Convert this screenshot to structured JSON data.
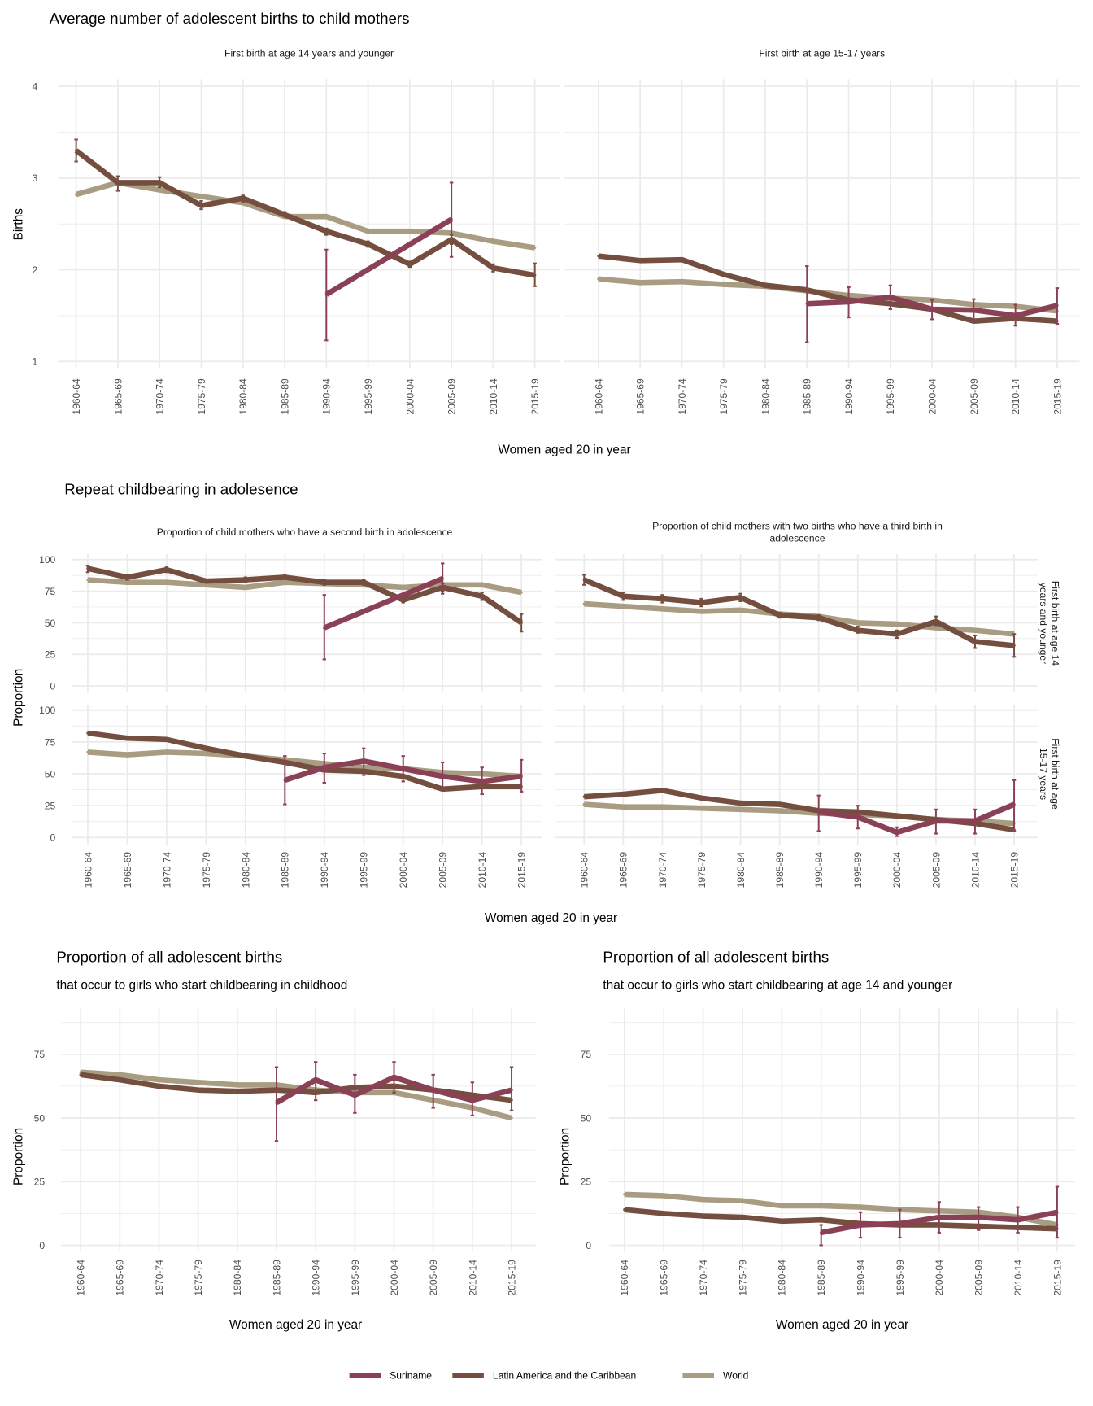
{
  "colors": {
    "Suriname": "#8B4155",
    "Latin America and the Caribbean": "#744E3F",
    "World": "#A89D82",
    "grid": "#EBEBEB"
  },
  "sections": {
    "a_title": "Average number of adolescent births to child mothers",
    "a_xlabel": "Women aged 20 in year",
    "a_ylabel": "Births",
    "b_title": "Repeat childbearing in adolesence",
    "b_xlabel": "Women aged 20 in year",
    "b_ylabel": "Proportion",
    "b_col1": "Proportion of child mothers who have a second birth in adolescence",
    "b_col2_line1": "Proportion of child mothers with two births who have a third birth in",
    "b_col2_line2": "adolescence",
    "b_row1_line1": "First birth at age 14",
    "b_row1_line2": "years and younger",
    "b_row2_line1": "First birth at age",
    "b_row2_line2": "15-17 years",
    "c1_title": "Proportion of all adolescent births",
    "c1_subtitle": "that occur to girls who start childbearing in childhood",
    "c2_title": "Proportion of all adolescent births",
    "c2_subtitle": "that occur to girls who start childbearing at age 14 and younger",
    "c_xlabel": "Women aged 20 in year",
    "c_ylabel": "Proportion"
  },
  "legend": {
    "position": "bottom",
    "items": [
      "Suriname",
      "Latin America and the Caribbean",
      "World"
    ]
  },
  "chart_data": [
    {
      "type": "line",
      "title": "First birth at age 14 years and younger",
      "ylim": [
        1,
        4
      ],
      "yticks": [
        1,
        2,
        3,
        4
      ],
      "grid": true,
      "categories": [
        "1960-64",
        "1965-69",
        "1970-74",
        "1975-79",
        "1980-84",
        "1985-89",
        "1990-94",
        "1995-99",
        "2000-04",
        "2005-09",
        "2010-14",
        "2015-19"
      ],
      "series": [
        {
          "name": "Latin America and the Caribbean",
          "values": [
            3.3,
            2.95,
            2.95,
            2.7,
            2.78,
            2.6,
            2.42,
            2.28,
            2.06,
            2.33,
            2.02,
            1.94
          ],
          "err": [
            [
              3.18,
              3.42
            ],
            [
              2.86,
              3.02
            ],
            [
              2.9,
              3.01
            ],
            [
              2.66,
              2.75
            ],
            [
              2.74,
              2.81
            ],
            [
              2.58,
              2.63
            ],
            [
              2.38,
              2.45
            ],
            [
              2.25,
              2.31
            ],
            [
              2.03,
              2.09
            ],
            [
              2.28,
              2.38
            ],
            [
              1.98,
              2.06
            ],
            [
              1.82,
              2.07
            ]
          ]
        },
        {
          "name": "World",
          "values": [
            2.82,
            2.95,
            2.87,
            2.8,
            2.73,
            2.58,
            2.58,
            2.42,
            2.42,
            2.4,
            2.31,
            2.24
          ]
        },
        {
          "name": "Suriname",
          "values": [
            null,
            null,
            null,
            null,
            null,
            null,
            1.73,
            null,
            null,
            2.55,
            null,
            null
          ],
          "err": [
            null,
            null,
            null,
            null,
            null,
            null,
            [
              1.23,
              2.22
            ],
            null,
            null,
            [
              2.14,
              2.95
            ],
            null,
            null
          ]
        }
      ]
    },
    {
      "type": "line",
      "title": "First birth at age 15-17 years",
      "ylim": [
        1,
        4
      ],
      "yticks": [
        1,
        2,
        3,
        4
      ],
      "grid": true,
      "categories": [
        "1960-64",
        "1965-69",
        "1970-74",
        "1975-79",
        "1980-84",
        "1985-89",
        "1990-94",
        "1995-99",
        "2000-04",
        "2005-09",
        "2010-14",
        "2015-19"
      ],
      "series": [
        {
          "name": "Latin America and the Caribbean",
          "values": [
            2.15,
            2.1,
            2.11,
            1.95,
            1.83,
            1.78,
            1.67,
            1.63,
            1.57,
            1.44,
            1.47,
            1.44
          ]
        },
        {
          "name": "World",
          "values": [
            1.9,
            1.86,
            1.87,
            1.84,
            1.82,
            1.77,
            1.72,
            1.69,
            1.67,
            1.62,
            1.6,
            1.55
          ]
        },
        {
          "name": "Suriname",
          "values": [
            null,
            null,
            null,
            null,
            null,
            1.63,
            1.65,
            1.7,
            1.57,
            1.56,
            1.5,
            1.61
          ],
          "err": [
            null,
            null,
            null,
            null,
            null,
            [
              1.21,
              2.04
            ],
            [
              1.48,
              1.81
            ],
            [
              1.57,
              1.83
            ],
            [
              1.46,
              1.67
            ],
            [
              1.44,
              1.68
            ],
            [
              1.39,
              1.62
            ],
            [
              1.41,
              1.8
            ]
          ]
        }
      ]
    },
    {
      "type": "line",
      "title": "Proportion of child mothers who have a second birth in adolescence",
      "facet_row": "First birth at age 14 years and younger",
      "ylim": [
        0,
        100
      ],
      "yticks": [
        0,
        25,
        50,
        75,
        100
      ],
      "grid": true,
      "categories": [
        "1960-64",
        "1965-69",
        "1970-74",
        "1975-79",
        "1980-84",
        "1985-89",
        "1990-94",
        "1995-99",
        "2000-04",
        "2005-09",
        "2010-14",
        "2015-19"
      ],
      "series": [
        {
          "name": "Latin America and the Caribbean",
          "values": [
            93,
            86,
            92,
            83,
            84,
            86,
            82,
            82,
            68,
            78,
            71,
            50
          ],
          "err": [
            [
              90,
              95
            ],
            [
              84,
              88
            ],
            [
              90,
              94
            ],
            [
              82,
              84
            ],
            [
              82,
              86
            ],
            [
              85,
              88
            ],
            [
              80,
              84
            ],
            [
              80,
              84
            ],
            [
              66,
              70
            ],
            [
              75,
              81
            ],
            [
              68,
              74
            ],
            [
              43,
              57
            ]
          ]
        },
        {
          "name": "World",
          "values": [
            84,
            82,
            82,
            80,
            78,
            82,
            81,
            80,
            78,
            80,
            80,
            74
          ]
        },
        {
          "name": "Suriname",
          "values": [
            null,
            null,
            null,
            null,
            null,
            null,
            46,
            null,
            null,
            85,
            null,
            null
          ],
          "err": [
            null,
            null,
            null,
            null,
            null,
            null,
            [
              21,
              72
            ],
            null,
            null,
            [
              73,
              97
            ],
            null,
            null
          ]
        }
      ]
    },
    {
      "type": "line",
      "title": "Proportion of child mothers with two births who have a third birth in adolescence",
      "facet_row": "First birth at age 14 years and younger",
      "ylim": [
        0,
        100
      ],
      "yticks": [
        0,
        25,
        50,
        75,
        100
      ],
      "grid": true,
      "categories": [
        "1960-64",
        "1965-69",
        "1970-74",
        "1975-79",
        "1980-84",
        "1985-89",
        "1990-94",
        "1995-99",
        "2000-04",
        "2005-09",
        "2010-14",
        "2015-19"
      ],
      "series": [
        {
          "name": "Latin America and the Caribbean",
          "values": [
            84,
            71,
            69,
            66,
            70,
            56,
            54,
            44,
            41,
            51,
            35,
            32
          ],
          "err": [
            [
              80,
              88
            ],
            [
              68,
              74
            ],
            [
              66,
              72
            ],
            [
              63,
              69
            ],
            [
              67,
              73
            ],
            [
              54,
              58
            ],
            [
              52,
              56
            ],
            [
              42,
              47
            ],
            [
              38,
              44
            ],
            [
              48,
              55
            ],
            [
              30,
              40
            ],
            [
              23,
              41
            ]
          ]
        },
        {
          "name": "World",
          "values": [
            65,
            63,
            61,
            59,
            60,
            57,
            55,
            50,
            49,
            46,
            44,
            41
          ]
        }
      ]
    },
    {
      "type": "line",
      "title": "Proportion of child mothers who have a second birth in adolescence",
      "facet_row": "First birth at age 15-17 years",
      "ylim": [
        0,
        100
      ],
      "yticks": [
        0,
        25,
        50,
        75,
        100
      ],
      "grid": true,
      "categories": [
        "1960-64",
        "1965-69",
        "1970-74",
        "1975-79",
        "1980-84",
        "1985-89",
        "1990-94",
        "1995-99",
        "2000-04",
        "2005-09",
        "2010-14",
        "2015-19"
      ],
      "series": [
        {
          "name": "Latin America and the Caribbean",
          "values": [
            82,
            78,
            77,
            70,
            64,
            59,
            53,
            52,
            48,
            38,
            40,
            40
          ]
        },
        {
          "name": "World",
          "values": [
            67,
            65,
            67,
            66,
            64,
            61,
            58,
            55,
            54,
            51,
            50,
            48
          ]
        },
        {
          "name": "Suriname",
          "values": [
            null,
            null,
            null,
            null,
            null,
            45,
            55,
            60,
            54,
            48,
            44,
            48
          ],
          "err": [
            null,
            null,
            null,
            null,
            null,
            [
              26,
              64
            ],
            [
              43,
              66
            ],
            [
              49,
              70
            ],
            [
              44,
              64
            ],
            [
              38,
              59
            ],
            [
              34,
              55
            ],
            [
              36,
              61
            ]
          ]
        }
      ]
    },
    {
      "type": "line",
      "title": "Proportion of child mothers with two births who have a third birth in adolescence",
      "facet_row": "First birth at age 15-17 years",
      "ylim": [
        0,
        100
      ],
      "yticks": [
        0,
        25,
        50,
        75,
        100
      ],
      "grid": true,
      "categories": [
        "1960-64",
        "1965-69",
        "1970-74",
        "1975-79",
        "1980-84",
        "1985-89",
        "1990-94",
        "1995-99",
        "2000-04",
        "2005-09",
        "2010-14",
        "2015-19"
      ],
      "series": [
        {
          "name": "Latin America and the Caribbean",
          "values": [
            32,
            34,
            37,
            31,
            27,
            26,
            21,
            20,
            17,
            14,
            11,
            6
          ]
        },
        {
          "name": "World",
          "values": [
            26,
            24,
            24,
            23,
            22,
            21,
            19,
            18,
            17,
            14,
            13,
            11
          ]
        },
        {
          "name": "Suriname",
          "values": [
            null,
            null,
            null,
            null,
            null,
            null,
            20,
            16,
            4,
            13,
            13,
            26
          ],
          "err": [
            null,
            null,
            null,
            null,
            null,
            null,
            [
              5,
              33
            ],
            [
              7,
              25
            ],
            [
              1,
              8
            ],
            [
              3,
              22
            ],
            [
              3,
              22
            ],
            [
              5,
              45
            ]
          ]
        }
      ]
    },
    {
      "type": "line",
      "title": "Proportion of all adolescent births",
      "subtitle": "that occur to girls who start childbearing in childhood",
      "ylim": [
        0,
        90
      ],
      "yticks": [
        0,
        25,
        50,
        75
      ],
      "grid": true,
      "categories": [
        "1960-64",
        "1965-69",
        "1970-74",
        "1975-79",
        "1980-84",
        "1985-89",
        "1990-94",
        "1995-99",
        "2000-04",
        "2005-09",
        "2010-14",
        "2015-19"
      ],
      "series": [
        {
          "name": "Latin America and the Caribbean",
          "values": [
            67,
            65,
            62.5,
            61,
            60.5,
            61,
            60,
            62,
            62.5,
            61,
            59,
            57
          ]
        },
        {
          "name": "World",
          "values": [
            68,
            67,
            65,
            64,
            63,
            63,
            61,
            60,
            60,
            57,
            54,
            50
          ]
        },
        {
          "name": "Suriname",
          "values": [
            null,
            null,
            null,
            null,
            null,
            56,
            65,
            59,
            66,
            61,
            57,
            61
          ],
          "err": [
            null,
            null,
            null,
            null,
            null,
            [
              41,
              70
            ],
            [
              57,
              72
            ],
            [
              52,
              67
            ],
            [
              60,
              72
            ],
            [
              54,
              67
            ],
            [
              51,
              64
            ],
            [
              53,
              70
            ]
          ]
        }
      ]
    },
    {
      "type": "line",
      "title": "Proportion of all adolescent births",
      "subtitle": "that occur to girls who start childbearing at age 14 and younger",
      "ylim": [
        0,
        90
      ],
      "yticks": [
        0,
        25,
        50,
        75
      ],
      "grid": true,
      "categories": [
        "1960-64",
        "1965-69",
        "1970-74",
        "1975-79",
        "1980-84",
        "1985-89",
        "1990-94",
        "1995-99",
        "2000-04",
        "2005-09",
        "2010-14",
        "2015-19"
      ],
      "series": [
        {
          "name": "Latin America and the Caribbean",
          "values": [
            14,
            12.5,
            11.5,
            11,
            9.5,
            10,
            8.5,
            8,
            8,
            7.5,
            7,
            6.5
          ]
        },
        {
          "name": "World",
          "values": [
            20,
            19.5,
            18,
            17.5,
            15.5,
            15.5,
            15,
            14,
            13.5,
            13,
            11,
            8
          ]
        },
        {
          "name": "Suriname",
          "values": [
            null,
            null,
            null,
            null,
            null,
            5,
            8,
            8.5,
            11,
            11,
            10,
            13
          ],
          "err": [
            null,
            null,
            null,
            null,
            null,
            [
              0,
              8
            ],
            [
              3,
              13
            ],
            [
              3,
              14
            ],
            [
              5,
              17
            ],
            [
              6,
              15
            ],
            [
              5,
              15
            ],
            [
              3,
              23
            ]
          ]
        }
      ]
    }
  ]
}
